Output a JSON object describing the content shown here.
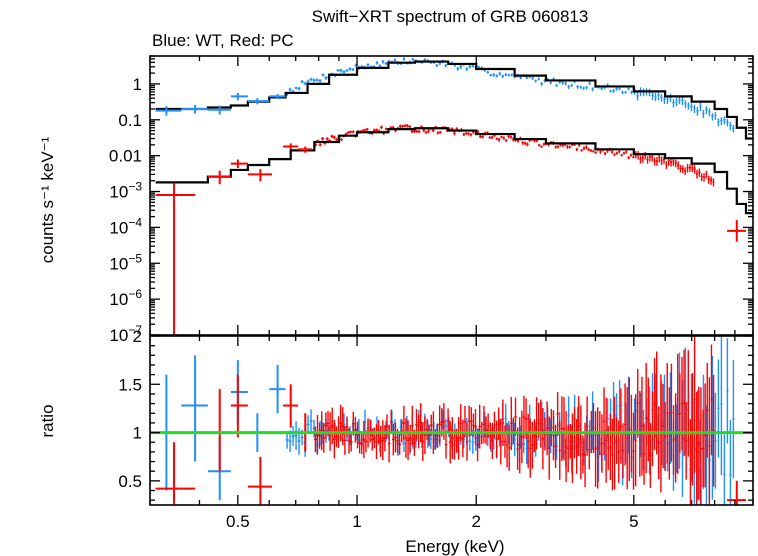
{
  "chart_data": [
    {
      "type": "scatter",
      "panel": "spectrum",
      "title": "Swift−XRT spectrum of GRB 060813",
      "subtitle": "Blue: WT, Red: PC",
      "ylabel": "counts s⁻¹ keV⁻¹",
      "xlabel": "",
      "xscale": "log",
      "yscale": "log",
      "xlim": [
        0.3,
        10.0
      ],
      "ylim": [
        1e-07,
        6.0
      ],
      "y_ticks": [
        {
          "value": 1,
          "label": "1"
        },
        {
          "value": 0.1,
          "label": "0.1"
        },
        {
          "value": 0.01,
          "label": "0.01"
        },
        {
          "value": 0.001,
          "label": "10⁻³"
        },
        {
          "value": 0.0001,
          "label": "10⁻⁴"
        },
        {
          "value": 1e-05,
          "label": "10⁻⁵"
        },
        {
          "value": 1e-06,
          "label": "10⁻⁶"
        },
        {
          "value": 1e-07,
          "label": "10⁻⁷"
        }
      ],
      "series": [
        {
          "color": "#1e90ff",
          "points": [
            {
              "x": 0.33,
              "xlo": 0.31,
              "xhi": 0.36,
              "y": 0.18,
              "ylo": 0.13,
              "yhi": 0.24
            },
            {
              "x": 0.39,
              "xlo": 0.36,
              "xhi": 0.42,
              "y": 0.2,
              "ylo": 0.15,
              "yhi": 0.26
            },
            {
              "x": 0.45,
              "xlo": 0.42,
              "xhi": 0.48,
              "y": 0.19,
              "ylo": 0.14,
              "yhi": 0.25
            },
            {
              "x": 0.5,
              "xlo": 0.48,
              "xhi": 0.53,
              "y": 0.45,
              "ylo": 0.35,
              "yhi": 0.56
            },
            {
              "x": 0.56,
              "xlo": 0.53,
              "xhi": 0.6,
              "y": 0.33,
              "ylo": 0.27,
              "yhi": 0.4
            },
            {
              "x": 0.63,
              "xlo": 0.6,
              "xhi": 0.66,
              "y": 0.45,
              "ylo": 0.38,
              "yhi": 0.52
            }
          ]
        },
        {
          "color": "#ff0000",
          "points": [
            {
              "x": 0.345,
              "xlo": 0.31,
              "xhi": 0.39,
              "y": 0.0008,
              "ylo": 1e-07,
              "yhi": 0.0017
            },
            {
              "x": 0.45,
              "xlo": 0.42,
              "xhi": 0.48,
              "y": 0.0026,
              "ylo": 0.0016,
              "yhi": 0.0038
            },
            {
              "x": 0.5,
              "xlo": 0.48,
              "xhi": 0.53,
              "y": 0.006,
              "ylo": 0.0045,
              "yhi": 0.0078
            },
            {
              "x": 0.57,
              "xlo": 0.53,
              "xhi": 0.61,
              "y": 0.003,
              "ylo": 0.0019,
              "yhi": 0.0042
            },
            {
              "x": 0.68,
              "xlo": 0.65,
              "xhi": 0.71,
              "y": 0.018,
              "ylo": 0.015,
              "yhi": 0.022
            },
            {
              "x": 0.74,
              "xlo": 0.71,
              "xhi": 0.77,
              "y": 0.015,
              "ylo": 0.012,
              "yhi": 0.018
            },
            {
              "x": 9.1,
              "xlo": 8.6,
              "xhi": 9.6,
              "y": 8e-05,
              "ylo": 4e-05,
              "yhi": 0.00016
            }
          ]
        }
      ],
      "bands": [
        {
          "color": "#1e90ff",
          "density": 150,
          "seed": 7,
          "x": [
            0.66,
            0.8,
            1.0,
            1.2,
            1.4,
            1.7,
            2.0,
            2.5,
            3.0,
            4.0,
            5.0,
            6.0,
            7.0,
            8.0,
            8.6,
            9.0
          ],
          "y": [
            0.55,
            1.4,
            2.9,
            4.0,
            4.4,
            3.6,
            2.5,
            1.6,
            1.2,
            0.85,
            0.6,
            0.4,
            0.25,
            0.12,
            0.08,
            0.05
          ]
        },
        {
          "color": "#ff0000",
          "density": 170,
          "seed": 13,
          "x": [
            0.78,
            0.9,
            1.0,
            1.2,
            1.4,
            1.7,
            2.0,
            2.5,
            3.0,
            4.0,
            5.0,
            6.0,
            7.0,
            8.0
          ],
          "y": [
            0.022,
            0.032,
            0.042,
            0.055,
            0.058,
            0.05,
            0.04,
            0.028,
            0.021,
            0.014,
            0.01,
            0.007,
            0.004,
            0.0018
          ]
        }
      ],
      "models": [
        {
          "color": "#000000",
          "x": [
            0.31,
            0.42,
            0.48,
            0.53,
            0.6,
            0.66,
            0.75,
            0.85,
            1.0,
            1.2,
            1.4,
            1.7,
            2.0,
            2.5,
            3.0,
            4.0,
            5.0,
            6.0,
            7.0,
            8.0,
            8.6,
            9.1,
            9.6,
            10.0
          ],
          "y": [
            0.2,
            0.22,
            0.25,
            0.32,
            0.42,
            0.56,
            1.0,
            1.8,
            2.8,
            3.9,
            4.2,
            3.6,
            2.6,
            1.7,
            1.25,
            0.85,
            0.62,
            0.45,
            0.32,
            0.2,
            0.12,
            0.06,
            0.03,
            0.02
          ]
        },
        {
          "color": "#000000",
          "x": [
            0.31,
            0.42,
            0.48,
            0.53,
            0.6,
            0.68,
            0.78,
            0.9,
            1.0,
            1.2,
            1.4,
            1.7,
            2.0,
            2.5,
            3.0,
            4.0,
            5.0,
            6.0,
            7.0,
            8.0,
            8.6,
            9.1,
            9.6,
            10.0
          ],
          "y": [
            0.0018,
            0.0026,
            0.004,
            0.0055,
            0.008,
            0.014,
            0.024,
            0.036,
            0.045,
            0.055,
            0.058,
            0.05,
            0.04,
            0.029,
            0.022,
            0.015,
            0.011,
            0.0085,
            0.006,
            0.0035,
            0.0012,
            0.00045,
            0.00025,
            0.00022
          ]
        }
      ]
    },
    {
      "type": "scatter",
      "panel": "ratio",
      "title": "",
      "xlabel": "Energy (keV)",
      "ylabel": "ratio",
      "xscale": "log",
      "yscale": "linear",
      "xlim": [
        0.3,
        10.0
      ],
      "ylim": [
        0.25,
        2.0
      ],
      "x_ticks": [
        {
          "value": 0.5,
          "label": "0.5"
        },
        {
          "value": 1,
          "label": "1"
        },
        {
          "value": 2,
          "label": "2"
        },
        {
          "value": 5,
          "label": "5"
        }
      ],
      "y_ticks": [
        {
          "value": 2,
          "label": "2"
        },
        {
          "value": 1.5,
          "label": "1.5"
        },
        {
          "value": 1,
          "label": "1"
        },
        {
          "value": 0.5,
          "label": "0.5"
        }
      ],
      "reference_line": {
        "y": 1.0,
        "color": "#22dd22"
      },
      "series": [
        {
          "color": "#1e90ff",
          "points": [
            {
              "x": 0.33,
              "xlo": 0.31,
              "xhi": 0.36,
              "y": 1.0,
              "ylo": 0.4,
              "yhi": 1.6
            },
            {
              "x": 0.39,
              "xlo": 0.36,
              "xhi": 0.42,
              "y": 1.28,
              "ylo": 0.7,
              "yhi": 1.8
            },
            {
              "x": 0.45,
              "xlo": 0.42,
              "xhi": 0.48,
              "y": 0.6,
              "ylo": 0.3,
              "yhi": 0.95
            },
            {
              "x": 0.5,
              "xlo": 0.48,
              "xhi": 0.53,
              "y": 1.42,
              "ylo": 1.1,
              "yhi": 1.75
            },
            {
              "x": 0.56,
              "xlo": 0.53,
              "xhi": 0.6,
              "y": 1.0,
              "ylo": 0.8,
              "yhi": 1.2
            },
            {
              "x": 0.63,
              "xlo": 0.6,
              "xhi": 0.66,
              "y": 1.45,
              "ylo": 1.2,
              "yhi": 1.7
            }
          ]
        },
        {
          "color": "#ff0000",
          "points": [
            {
              "x": 0.345,
              "xlo": 0.31,
              "xhi": 0.39,
              "y": 0.42,
              "ylo": 0.25,
              "yhi": 0.9
            },
            {
              "x": 0.45,
              "xlo": 0.42,
              "xhi": 0.48,
              "y": 1.0,
              "ylo": 0.6,
              "yhi": 1.45
            },
            {
              "x": 0.5,
              "xlo": 0.48,
              "xhi": 0.53,
              "y": 1.28,
              "ylo": 0.95,
              "yhi": 1.6
            },
            {
              "x": 0.57,
              "xlo": 0.53,
              "xhi": 0.61,
              "y": 0.44,
              "ylo": 0.25,
              "yhi": 0.75
            },
            {
              "x": 0.68,
              "xlo": 0.65,
              "xhi": 0.71,
              "y": 1.28,
              "ylo": 1.05,
              "yhi": 1.5
            },
            {
              "x": 0.74,
              "xlo": 0.71,
              "xhi": 0.77,
              "y": 1.0,
              "ylo": 0.8,
              "yhi": 1.2
            },
            {
              "x": 9.1,
              "xlo": 8.6,
              "xhi": 9.6,
              "y": 0.3,
              "ylo": 0.25,
              "yhi": 0.5
            }
          ]
        }
      ],
      "bands": [
        {
          "color": "#1e90ff",
          "density": 150,
          "seed": 21,
          "x": [
            0.66,
            1.0,
            2.0,
            3.0,
            4.0,
            5.0,
            6.0,
            7.0,
            8.0,
            9.0
          ],
          "y": [
            1.0,
            1.0,
            1.0,
            1.0,
            1.0,
            1.0,
            1.0,
            1.0,
            1.0,
            1.0
          ],
          "spread": [
            0.15,
            0.12,
            0.14,
            0.18,
            0.25,
            0.3,
            0.35,
            0.4,
            0.45,
            0.45
          ],
          "err": [
            0.15,
            0.12,
            0.14,
            0.2,
            0.28,
            0.38,
            0.5,
            0.6,
            0.7,
            0.7
          ]
        },
        {
          "color": "#ff0000",
          "density": 190,
          "seed": 33,
          "x": [
            0.78,
            1.0,
            2.0,
            3.0,
            4.0,
            5.0,
            6.0,
            7.0,
            8.0
          ],
          "y": [
            1.0,
            1.0,
            1.0,
            1.0,
            1.0,
            1.0,
            1.0,
            1.0,
            1.0
          ],
          "spread": [
            0.14,
            0.12,
            0.14,
            0.2,
            0.25,
            0.3,
            0.35,
            0.4,
            0.4
          ],
          "err": [
            0.2,
            0.18,
            0.22,
            0.3,
            0.4,
            0.5,
            0.6,
            0.7,
            0.7
          ]
        }
      ]
    }
  ]
}
